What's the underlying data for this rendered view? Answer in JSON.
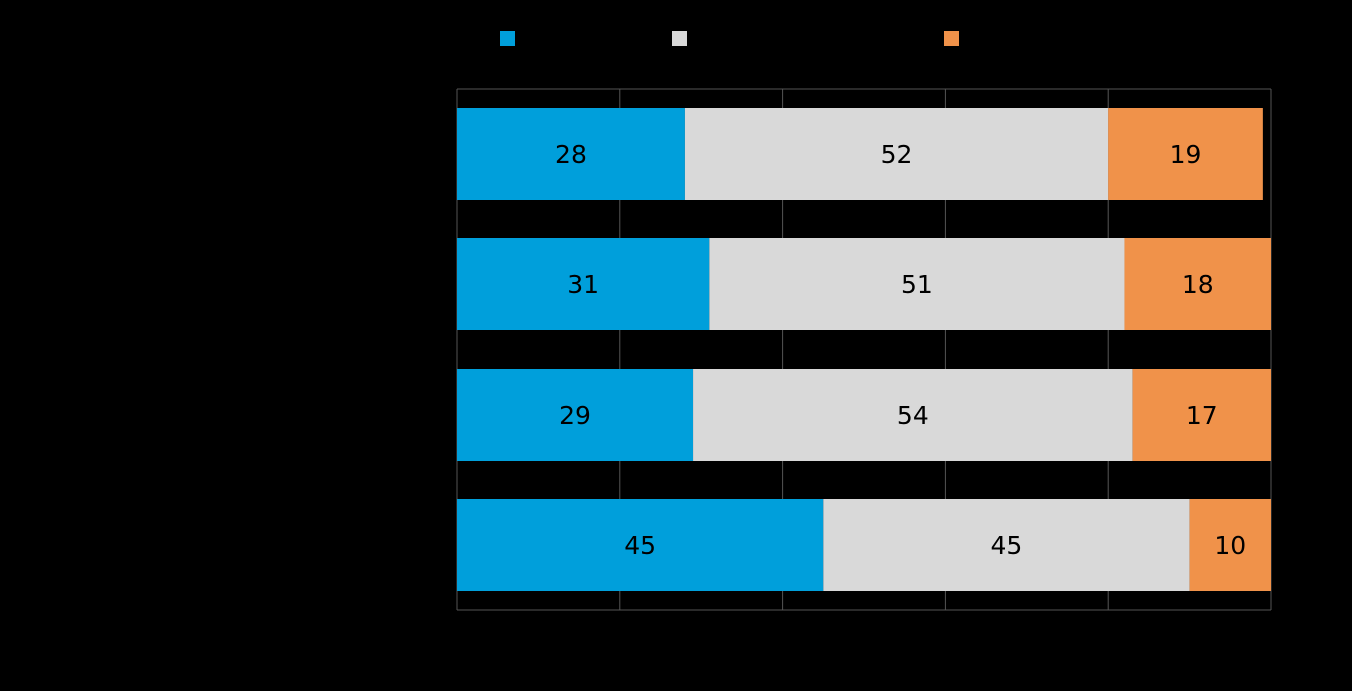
{
  "chart_data": {
    "type": "bar",
    "orientation": "horizontal",
    "stacked": true,
    "title": "",
    "xlabel": "",
    "ylabel": "",
    "categories": [
      "",
      "",
      "",
      ""
    ],
    "xlim": [
      0,
      100
    ],
    "grid": true,
    "legend_position": "top",
    "series": [
      {
        "values": [
          28,
          31,
          29,
          45
        ],
        "color": "#009fdb"
      },
      {
        "values": [
          52,
          51,
          54,
          45
        ],
        "color": "#d9d9d9"
      },
      {
        "values": [
          19,
          18,
          17,
          10
        ],
        "color": "#f0924a"
      }
    ],
    "data_labels": [
      [
        "28",
        "52",
        "19"
      ],
      [
        "31",
        "51",
        "18"
      ],
      [
        "29",
        "54",
        "17"
      ],
      [
        "45",
        "45",
        "10"
      ]
    ]
  }
}
